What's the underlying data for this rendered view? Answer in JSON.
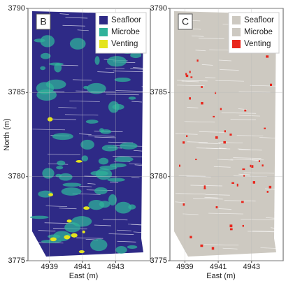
{
  "chart_data": [
    {
      "type": "image",
      "panel": "B",
      "xlabel": "East (m)",
      "ylabel": "North (m)",
      "xlim": [
        4937.7,
        4945.1
      ],
      "ylim": [
        3775,
        3790
      ],
      "xticks": [
        4939,
        4941,
        4943
      ],
      "yticks": [
        3775,
        3780,
        3785,
        3790
      ],
      "grid": true,
      "series": [
        {
          "name": "Seafloor",
          "color": "#2e2a86"
        },
        {
          "name": "Microbe",
          "color": "#2fb29a"
        },
        {
          "name": "Venting",
          "color": "#e4e41c"
        }
      ]
    },
    {
      "type": "image",
      "panel": "C",
      "xlabel": "East (m)",
      "xlim": [
        4938.1,
        4944.9
      ],
      "ylim": [
        3775,
        3790
      ],
      "xticks": [
        4939,
        4941,
        4943
      ],
      "yticks": [
        3775,
        3780,
        3785,
        3790
      ],
      "grid": true,
      "series": [
        {
          "name": "Seafloor",
          "color": "#cdc9c1"
        },
        {
          "name": "Microbe",
          "color": "#cdc9c1"
        },
        {
          "name": "Venting",
          "color": "#e8261c"
        }
      ]
    }
  ]
}
